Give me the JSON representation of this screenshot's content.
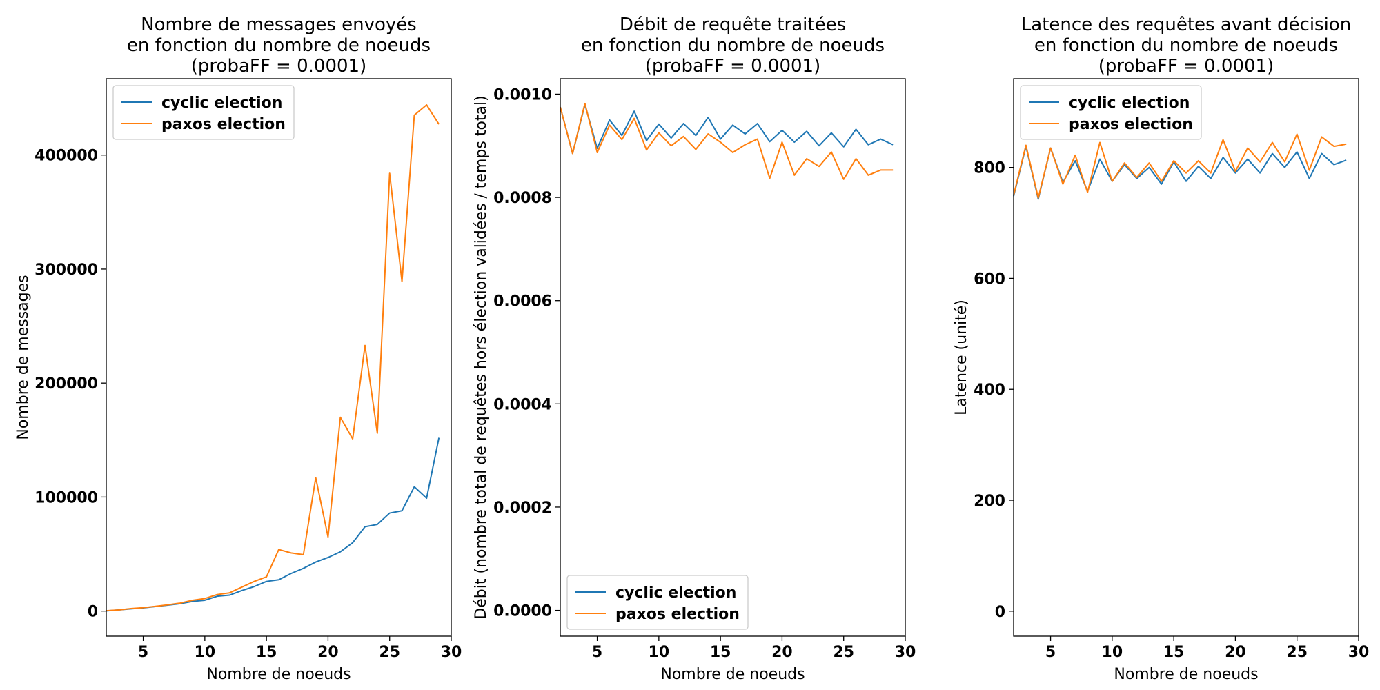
{
  "chart_data": [
    {
      "type": "line",
      "title": [
        "Nombre de messages envoyés",
        "en fonction du nombre de noeuds",
        "(probaFF = 0.0001)"
      ],
      "xlabel": "Nombre de noeuds",
      "ylabel": "Nombre de messages",
      "xlim": [
        2,
        30
      ],
      "ylim": [
        -22000,
        467000
      ],
      "xticks": [
        5,
        10,
        15,
        20,
        25,
        30
      ],
      "yticks": [
        0,
        100000,
        200000,
        300000,
        400000
      ],
      "ytick_labels": [
        "0",
        "100000",
        "200000",
        "300000",
        "400000"
      ],
      "legend_position": "top-left",
      "x": [
        2,
        3,
        4,
        5,
        6,
        7,
        8,
        9,
        10,
        11,
        12,
        13,
        14,
        15,
        16,
        17,
        18,
        19,
        20,
        21,
        22,
        23,
        24,
        25,
        26,
        27,
        28,
        29
      ],
      "series": [
        {
          "name": "cyclic election",
          "color": "#1f77b4",
          "values": [
            200,
            1000,
            2000,
            2800,
            4000,
            5200,
            6500,
            8500,
            9500,
            13000,
            14000,
            18000,
            21500,
            26000,
            27500,
            33000,
            37500,
            43000,
            47000,
            52000,
            60000,
            74000,
            76000,
            86000,
            88000,
            109000,
            99000,
            152000
          ]
        },
        {
          "name": "paxos election",
          "color": "#ff7f0e",
          "values": [
            300,
            1000,
            2200,
            3000,
            4200,
            5500,
            7000,
            9500,
            11000,
            14500,
            16000,
            21000,
            26000,
            30000,
            54000,
            51000,
            49500,
            117000,
            65000,
            170000,
            151000,
            233000,
            156000,
            384000,
            289000,
            435000,
            444000,
            427000
          ]
        }
      ]
    },
    {
      "type": "line",
      "title": [
        "Débit de requête traitées",
        "en fonction du nombre de noeuds",
        "(probaFF = 0.0001)"
      ],
      "xlabel": "Nombre de noeuds",
      "ylabel": "Débit (nombre total de requêtes hors élection validées / temps total)",
      "xlim": [
        2,
        30
      ],
      "ylim": [
        -5e-05,
        0.00103
      ],
      "xticks": [
        5,
        10,
        15,
        20,
        25,
        30
      ],
      "yticks": [
        0,
        0.0002,
        0.0004,
        0.0006,
        0.0008,
        0.001
      ],
      "ytick_labels": [
        "0.0000",
        "0.0002",
        "0.0004",
        "0.0006",
        "0.0008",
        "0.0010"
      ],
      "legend_position": "bottom-left",
      "x": [
        2,
        3,
        4,
        5,
        6,
        7,
        8,
        9,
        10,
        11,
        12,
        13,
        14,
        15,
        16,
        17,
        18,
        19,
        20,
        21,
        22,
        23,
        24,
        25,
        26,
        27,
        28,
        29
      ],
      "series": [
        {
          "name": "cyclic election",
          "color": "#1f77b4",
          "values": [
            0.000975,
            0.000885,
            0.00098,
            0.000895,
            0.00095,
            0.00092,
            0.000967,
            0.00091,
            0.000942,
            0.000915,
            0.000943,
            0.00092,
            0.000955,
            0.000913,
            0.00094,
            0.000923,
            0.000943,
            0.000908,
            0.00093,
            0.000907,
            0.000928,
            0.0009,
            0.000925,
            0.000898,
            0.000932,
            0.000902,
            0.000913,
            0.000902
          ]
        },
        {
          "name": "paxos election",
          "color": "#ff7f0e",
          "values": [
            0.000975,
            0.000885,
            0.000982,
            0.000887,
            0.00094,
            0.000912,
            0.000953,
            0.000892,
            0.000925,
            0.0009,
            0.000918,
            0.000893,
            0.000923,
            0.000907,
            0.000887,
            0.000902,
            0.000913,
            0.000837,
            0.000907,
            0.000843,
            0.000875,
            0.00086,
            0.000888,
            0.000835,
            0.000875,
            0.000843,
            0.000853,
            0.000853
          ]
        }
      ]
    },
    {
      "type": "line",
      "title": [
        "Latence des requêtes avant décision",
        "en fonction du nombre de noeuds",
        "(probaFF = 0.0001)"
      ],
      "xlabel": "Nombre de noeuds",
      "ylabel": "Latence (unité)",
      "xlim": [
        2,
        30
      ],
      "ylim": [
        -45,
        960
      ],
      "xticks": [
        5,
        10,
        15,
        20,
        25,
        30
      ],
      "yticks": [
        0,
        200,
        400,
        600,
        800
      ],
      "ytick_labels": [
        "0",
        "200",
        "400",
        "600",
        "800"
      ],
      "legend_position": "top-left",
      "x": [
        2,
        3,
        4,
        5,
        6,
        7,
        8,
        9,
        10,
        11,
        12,
        13,
        14,
        15,
        16,
        17,
        18,
        19,
        20,
        21,
        22,
        23,
        24,
        25,
        26,
        27,
        28,
        29
      ],
      "series": [
        {
          "name": "cyclic election",
          "color": "#1f77b4",
          "values": [
            748,
            838,
            743,
            835,
            773,
            812,
            757,
            815,
            775,
            805,
            780,
            800,
            770,
            810,
            775,
            802,
            780,
            818,
            790,
            815,
            790,
            825,
            800,
            828,
            780,
            825,
            805,
            813
          ]
        },
        {
          "name": "paxos election",
          "color": "#ff7f0e",
          "values": [
            750,
            840,
            745,
            835,
            770,
            822,
            755,
            845,
            775,
            808,
            782,
            808,
            775,
            812,
            790,
            812,
            790,
            850,
            793,
            835,
            810,
            845,
            810,
            860,
            795,
            855,
            838,
            842
          ]
        }
      ]
    }
  ]
}
